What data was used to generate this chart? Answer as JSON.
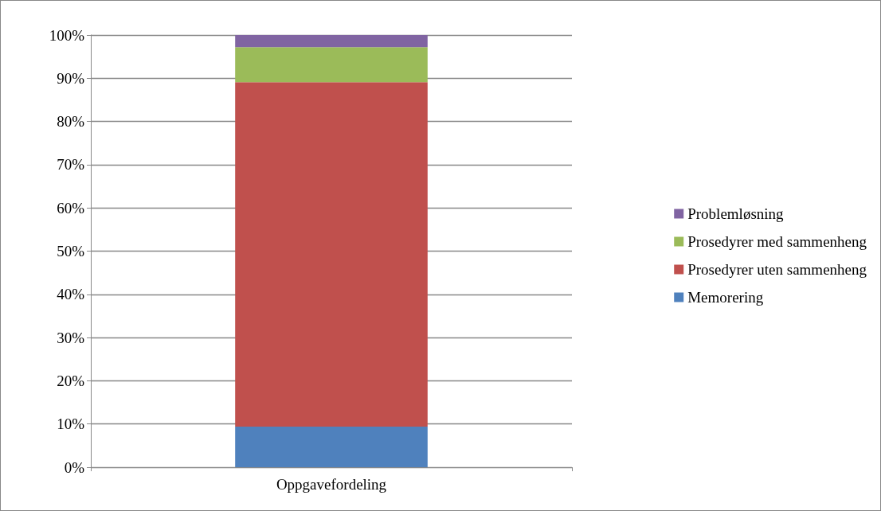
{
  "chart_data": {
    "type": "bar",
    "stacked": true,
    "categories": [
      "Oppgavefordeling"
    ],
    "series": [
      {
        "name": "Memorering",
        "color": "#4f81bd",
        "values": [
          9.4
        ]
      },
      {
        "name": "Prosedyrer uten sammenheng",
        "color": "#c0504d",
        "values": [
          79.7
        ]
      },
      {
        "name": "Prosedyrer med sammenheng",
        "color": "#9bbb59",
        "values": [
          8.1
        ]
      },
      {
        "name": "Problemløsning",
        "color": "#8064a2",
        "values": [
          2.8
        ]
      }
    ],
    "ylim": [
      0,
      100
    ],
    "yticks": [
      {
        "value": 0,
        "label": "0%"
      },
      {
        "value": 10,
        "label": "10%"
      },
      {
        "value": 20,
        "label": "20%"
      },
      {
        "value": 30,
        "label": "30%"
      },
      {
        "value": 40,
        "label": "40%"
      },
      {
        "value": 50,
        "label": "50%"
      },
      {
        "value": 60,
        "label": "60%"
      },
      {
        "value": 70,
        "label": "70%"
      },
      {
        "value": 80,
        "label": "80%"
      },
      {
        "value": 90,
        "label": "90%"
      },
      {
        "value": 100,
        "label": "100%"
      }
    ],
    "grid": "y",
    "legend": "right"
  }
}
